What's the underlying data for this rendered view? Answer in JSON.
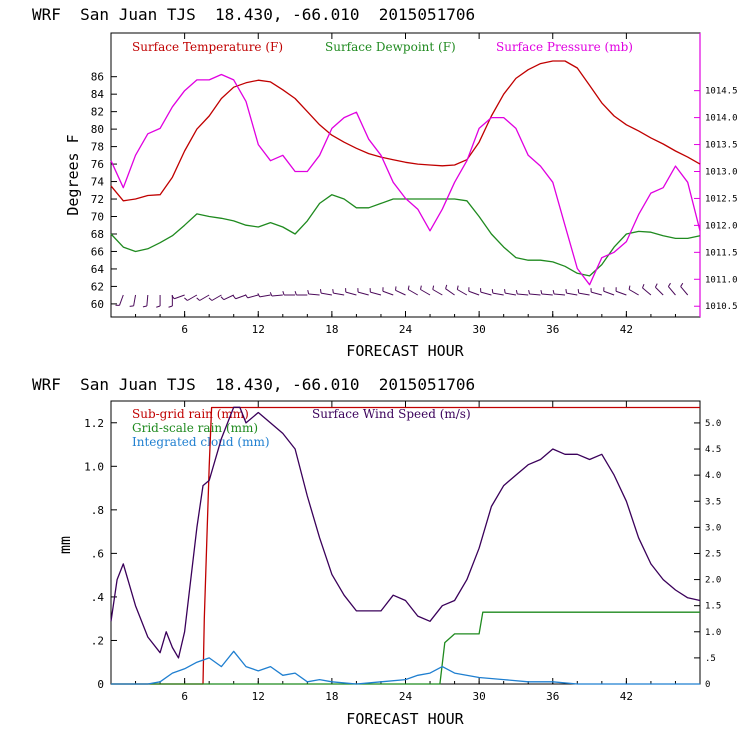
{
  "chart_data": [
    {
      "type": "line",
      "title": "WRF  San Juan TJS  18.430, -66.010  2015051706",
      "xlabel": "FORECAST HOUR",
      "ylabel": "Degrees F",
      "xlim": [
        0,
        48
      ],
      "ylim": [
        58.5,
        91
      ],
      "xticks": [
        "6",
        "12",
        "18",
        "24",
        "30",
        "36",
        "42"
      ],
      "xtick_values": [
        6,
        12,
        18,
        24,
        30,
        36,
        42
      ],
      "yticks": [
        "60",
        "62",
        "64",
        "66",
        "68",
        "70",
        "72",
        "74",
        "76",
        "78",
        "80",
        "82",
        "84",
        "86"
      ],
      "ytick_values": [
        60,
        62,
        64,
        66,
        68,
        70,
        72,
        74,
        76,
        78,
        80,
        82,
        84,
        86
      ],
      "y2lim": [
        1010.3,
        1015.57
      ],
      "y2ticks": [
        "1010.5",
        "1011.0",
        "1011.5",
        "1012.0",
        "1012.5",
        "1013.0",
        "1013.5",
        "1014.0",
        "1014.5"
      ],
      "y2tick_values": [
        1010.5,
        1011.0,
        1011.5,
        1012.0,
        1012.5,
        1013.0,
        1013.5,
        1014.0,
        1014.5
      ],
      "legend_placement": "top",
      "colors": {
        "temperature": "#c00000",
        "dewpoint": "#1f8a1f",
        "pressure": "#e000e0",
        "barbs": "#4b0a5a"
      },
      "series": [
        {
          "name": "Surface Temperature (F)",
          "axis": "left",
          "x": [
            0,
            1,
            2,
            3,
            4,
            5,
            6,
            7,
            8,
            9,
            10,
            11,
            12,
            13,
            14,
            15,
            16,
            17,
            18,
            19,
            20,
            21,
            22,
            23,
            24,
            25,
            26,
            27,
            28,
            29,
            30,
            31,
            32,
            33,
            34,
            35,
            36,
            37,
            38,
            39,
            40,
            41,
            42,
            43,
            44,
            45,
            46,
            47,
            48
          ],
          "values": [
            73.5,
            71.8,
            72.0,
            72.4,
            72.5,
            74.5,
            77.5,
            80.0,
            81.5,
            83.5,
            84.8,
            85.3,
            85.6,
            85.4,
            84.5,
            83.5,
            82.0,
            80.5,
            79.3,
            78.5,
            77.8,
            77.2,
            76.8,
            76.5,
            76.2,
            76.0,
            75.9,
            75.8,
            75.9,
            76.5,
            78.5,
            81.5,
            84.0,
            85.8,
            86.8,
            87.5,
            87.8,
            87.8,
            87.0,
            85.0,
            83.0,
            81.5,
            80.5,
            79.8,
            79.0,
            78.3,
            77.5,
            76.8,
            76.0
          ]
        },
        {
          "name": "Surface Dewpoint (F)",
          "axis": "left",
          "x": [
            0,
            1,
            2,
            3,
            4,
            5,
            6,
            7,
            8,
            9,
            10,
            11,
            12,
            13,
            14,
            15,
            16,
            17,
            18,
            19,
            20,
            21,
            22,
            23,
            24,
            25,
            26,
            27,
            28,
            29,
            30,
            31,
            32,
            33,
            34,
            35,
            36,
            37,
            38,
            39,
            40,
            41,
            42,
            43,
            44,
            45,
            46,
            47,
            48
          ],
          "values": [
            68.0,
            66.5,
            66.0,
            66.3,
            67.0,
            67.8,
            69.0,
            70.3,
            70.0,
            69.8,
            69.5,
            69.0,
            68.8,
            69.3,
            68.8,
            68.0,
            69.5,
            71.5,
            72.5,
            72.0,
            71.0,
            71.0,
            71.5,
            72.0,
            72.0,
            72.0,
            72.0,
            72.0,
            72.0,
            71.8,
            70.0,
            68.0,
            66.5,
            65.3,
            65.0,
            65.0,
            64.8,
            64.3,
            63.5,
            63.2,
            64.5,
            66.5,
            68.0,
            68.3,
            68.2,
            67.8,
            67.5,
            67.5,
            67.8
          ]
        },
        {
          "name": "Surface Pressure (mb)",
          "axis": "right",
          "x": [
            0,
            1,
            2,
            3,
            4,
            5,
            6,
            7,
            8,
            9,
            10,
            11,
            12,
            13,
            14,
            15,
            16,
            17,
            18,
            19,
            20,
            21,
            22,
            23,
            24,
            25,
            26,
            27,
            28,
            29,
            30,
            31,
            32,
            33,
            34,
            35,
            36,
            37,
            38,
            39,
            40,
            41,
            42,
            43,
            44,
            45,
            46,
            47,
            48
          ],
          "values": [
            1013.2,
            1012.7,
            1013.3,
            1013.7,
            1013.8,
            1014.2,
            1014.5,
            1014.7,
            1014.7,
            1014.8,
            1014.7,
            1014.3,
            1013.5,
            1013.2,
            1013.3,
            1013.0,
            1013.0,
            1013.3,
            1013.8,
            1014.0,
            1014.1,
            1013.6,
            1013.3,
            1012.8,
            1012.5,
            1012.3,
            1011.9,
            1012.3,
            1012.8,
            1013.2,
            1013.8,
            1014.0,
            1014.0,
            1013.8,
            1013.3,
            1013.1,
            1012.8,
            1012.0,
            1011.2,
            1010.9,
            1011.4,
            1011.5,
            1011.7,
            1012.2,
            1012.6,
            1012.7,
            1013.1,
            1012.8,
            1011.9
          ]
        }
      ],
      "wind_barbs": {
        "label": "",
        "x": [
          1,
          2,
          3,
          4,
          5,
          6,
          7,
          8,
          9,
          10,
          11,
          12,
          13,
          14,
          15,
          16,
          17,
          18,
          19,
          20,
          21,
          22,
          23,
          24,
          25,
          26,
          27,
          28,
          29,
          30,
          31,
          32,
          33,
          34,
          35,
          36,
          37,
          38,
          39,
          40,
          41,
          42,
          43,
          44,
          45,
          46,
          47
        ],
        "direction_deg": [
          200,
          190,
          185,
          180,
          180,
          250,
          240,
          240,
          240,
          245,
          250,
          255,
          260,
          265,
          270,
          270,
          275,
          280,
          280,
          285,
          285,
          285,
          290,
          295,
          300,
          300,
          300,
          305,
          300,
          290,
          285,
          280,
          280,
          275,
          275,
          275,
          275,
          280,
          280,
          285,
          290,
          290,
          300,
          310,
          315,
          320,
          320
        ]
      }
    },
    {
      "type": "line",
      "title": "WRF  San Juan TJS  18.430, -66.010  2015051706",
      "xlabel": "FORECAST HOUR",
      "ylabel": "mm",
      "xlim": [
        0,
        48
      ],
      "ylim": [
        0,
        1.3
      ],
      "xticks": [
        "6",
        "12",
        "18",
        "24",
        "30",
        "36",
        "42"
      ],
      "xtick_values": [
        6,
        12,
        18,
        24,
        30,
        36,
        42
      ],
      "yticks": [
        "0",
        ".2",
        ".4",
        ".6",
        ".8",
        "1.0",
        "1.2"
      ],
      "ytick_values": [
        0,
        0.2,
        0.4,
        0.6,
        0.8,
        1.0,
        1.2
      ],
      "y2lim": [
        0,
        5.42
      ],
      "y2ticks": [
        "0",
        ".5",
        "1.0",
        "1.5",
        "2.0",
        "2.5",
        "3.0",
        "3.5",
        "4.0",
        "4.5",
        "5.0"
      ],
      "y2tick_values": [
        0,
        0.5,
        1.0,
        1.5,
        2.0,
        2.5,
        3.0,
        3.5,
        4.0,
        4.5,
        5.0
      ],
      "legend_placement": "top-left",
      "colors": {
        "subgrid": "#c00000",
        "windspeed": "#3a005a",
        "gridscale": "#1f8a1f",
        "cloud": "#1f7fd0"
      },
      "series": [
        {
          "name": "Sub-grid rain (mm)",
          "axis": "left",
          "x": [
            0,
            7.5,
            7.6,
            8.0,
            8.2,
            48
          ],
          "values": [
            0,
            0,
            0.3,
            1.0,
            1.27,
            1.27
          ]
        },
        {
          "name": "Surface Wind Speed (m/s)",
          "axis": "right",
          "x": [
            0,
            0.5,
            1,
            2,
            3,
            4,
            4.5,
            5,
            5.5,
            6,
            7,
            7.5,
            8,
            9,
            10,
            10.5,
            11,
            12,
            13,
            14,
            15,
            16,
            17,
            18,
            19,
            20,
            21,
            22,
            23,
            24,
            25,
            26,
            27,
            28,
            29,
            30,
            31,
            32,
            33,
            34,
            35,
            36,
            37,
            38,
            39,
            40,
            41,
            42,
            43,
            44,
            45,
            46,
            47,
            48
          ],
          "values": [
            1.2,
            2.0,
            2.3,
            1.5,
            0.9,
            0.6,
            1.0,
            0.7,
            0.5,
            1.0,
            3.0,
            3.8,
            3.9,
            4.7,
            5.3,
            5.3,
            5.0,
            5.2,
            5.0,
            4.8,
            4.5,
            3.6,
            2.8,
            2.1,
            1.7,
            1.4,
            1.4,
            1.4,
            1.7,
            1.6,
            1.3,
            1.2,
            1.5,
            1.6,
            2.0,
            2.6,
            3.4,
            3.8,
            4.0,
            4.2,
            4.3,
            4.5,
            4.4,
            4.4,
            4.3,
            4.4,
            4.0,
            3.5,
            2.8,
            2.3,
            2.0,
            1.8,
            1.65,
            1.6
          ]
        },
        {
          "name": "Grid-scale rain (mm)",
          "axis": "left",
          "x": [
            0,
            26.8,
            27.2,
            28,
            30,
            30.3,
            48
          ],
          "values": [
            0,
            0,
            0.19,
            0.23,
            0.23,
            0.33,
            0.33
          ]
        },
        {
          "name": "Integrated cloud (mm)",
          "axis": "left",
          "x": [
            0,
            2,
            3,
            4,
            5,
            6,
            7,
            8,
            9,
            10,
            11,
            12,
            13,
            14,
            15,
            16,
            17,
            18,
            20,
            22,
            24,
            25,
            26,
            27,
            28,
            30,
            32,
            34,
            36,
            38,
            48
          ],
          "values": [
            0,
            0,
            0,
            0.01,
            0.05,
            0.07,
            0.1,
            0.12,
            0.08,
            0.15,
            0.08,
            0.06,
            0.08,
            0.04,
            0.05,
            0.01,
            0.02,
            0.01,
            0.0,
            0.01,
            0.02,
            0.04,
            0.05,
            0.08,
            0.05,
            0.03,
            0.02,
            0.01,
            0.01,
            0.0,
            0.0
          ]
        }
      ]
    }
  ]
}
